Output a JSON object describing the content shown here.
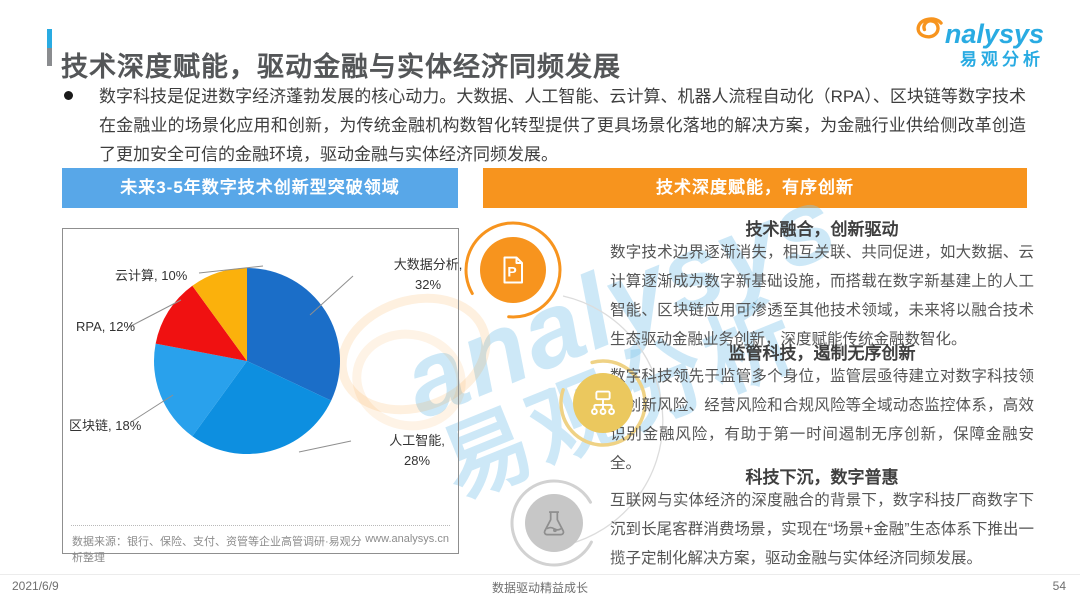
{
  "page": {
    "title": "技术深度赋能，驱动金融与实体经济同频发展",
    "bullet": "数字科技是促进数字经济蓬勃发展的核心动力。大数据、人工智能、云计算、机器人流程自动化（RPA）、区块链等数字技术在金融业的场景化应用和创新，为传统金融机构数智化转型提供了更具场景化落地的解决方案，为金融行业供给侧改革创造了更加安全可信的金融环境，驱动金融与实体经济同频发展。",
    "footer": {
      "date": "2021/6/9",
      "slogan": "数据驱动精益成长",
      "page_number": "54"
    }
  },
  "logo": {
    "brand_rest": "nalysys",
    "sub": "易观分析",
    "orange": "#F7941E",
    "blue": "#29ABE2"
  },
  "left_panel": {
    "header": "未来3-5年数字技术创新型突破领域",
    "header_color": "#58A7E8",
    "source": "数据来源：银行、保险、支付、资管等企业高管调研·易观分析整理",
    "site": "www.analysys.cn"
  },
  "right_panel": {
    "header": "技术深度赋能，有序创新",
    "header_color": "#F7941E",
    "sections": [
      {
        "icon": "document-p-icon",
        "title": "技术融合，创新驱动",
        "body": "数字技术边界逐渐消失，相互关联、共同促进，如大数据、云计算逐渐成为数字新基础设施，而搭载在数字新基建上的人工智能、区块链应用可渗透至其他技术领域，未来将以融合技术生态驱动金融业务创新，深度赋能传统金融数智化。"
      },
      {
        "icon": "sitemap-icon",
        "title": "监管科技，遏制无序创新",
        "body": "数字科技领先于监管多个身位，监管层亟待建立对数字科技领域创新风险、经营风险和合规风险等全域动态监控体系，高效识别金融风险，有助于第一时间遏制无序创新，保障金融安全。"
      },
      {
        "icon": "flask-icon",
        "title": "科技下沉，数字普惠",
        "body": "互联网与实体经济的深度融合的背景下，数字科技厂商数字下沉到长尾客群消费场景，实现在“场景+金融”生态体系下推出一揽子定制化解决方案，驱动金融与实体经济同频发展。"
      }
    ]
  },
  "watermark": {
    "line1": "analysys",
    "line2": "易观分析"
  },
  "chart_data": {
    "type": "pie",
    "title": "未来3-5年数字技术创新型突破领域",
    "direction": "clockwise",
    "start_angle_deg": 0,
    "legend_position": "callout-labels",
    "segments": [
      {
        "label": "大数据分析",
        "value": 32,
        "color": "#1B6EC8"
      },
      {
        "label": "人工智能",
        "value": 28,
        "color": "#0D8FE0"
      },
      {
        "label": "区块链",
        "value": 18,
        "color": "#29A1EC"
      },
      {
        "label": "RPA",
        "value": 12,
        "color": "#F01111"
      },
      {
        "label": "云计算",
        "value": 10,
        "color": "#FBB10C"
      }
    ]
  }
}
